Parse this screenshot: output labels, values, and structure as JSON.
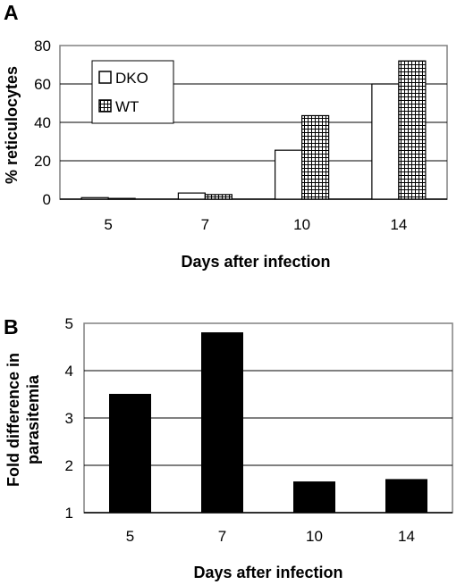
{
  "chart_data": [
    {
      "panel": "A",
      "type": "bar",
      "categories": [
        "5",
        "7",
        "10",
        "14"
      ],
      "series": [
        {
          "name": "DKO",
          "values": [
            0.8,
            3.2,
            25.5,
            60
          ],
          "fill": "#ffffff",
          "pattern": "none"
        },
        {
          "name": "WT",
          "values": [
            0.4,
            2.4,
            43.5,
            72
          ],
          "fill": "#ffffff",
          "pattern": "grid"
        }
      ],
      "xlabel": "Days after infection",
      "ylabel": "% reticulocytes",
      "ylim": [
        0,
        80
      ],
      "yticks": [
        "0",
        "20",
        "40",
        "60",
        "80"
      ],
      "grid": true,
      "legend": "top-left"
    },
    {
      "panel": "B",
      "type": "bar",
      "categories": [
        "5",
        "7",
        "10",
        "14"
      ],
      "series": [
        {
          "values": [
            3.5,
            4.8,
            1.65,
            1.7
          ],
          "fill": "#000000"
        }
      ],
      "xlabel": "Days after infection",
      "ylabel_lines": [
        "Fold difference in",
        "parasitemia"
      ],
      "ylim": [
        1,
        5
      ],
      "yticks": [
        "1",
        "2",
        "3",
        "4",
        "5"
      ],
      "grid": true
    }
  ]
}
